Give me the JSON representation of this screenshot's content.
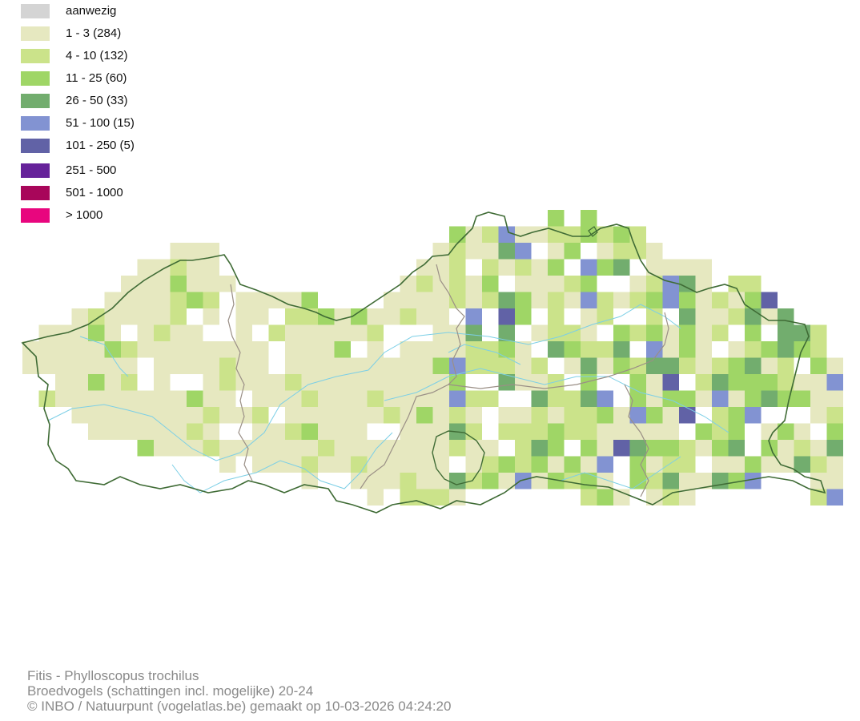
{
  "legend": [
    {
      "label": "aanwezig",
      "color": "#d4d4d4"
    },
    {
      "label": "1 - 3 (284)",
      "color": "#e6e8c0"
    },
    {
      "label": "4 - 10 (132)",
      "color": "#cbe38a"
    },
    {
      "label": "11 - 25 (60)",
      "color": "#9fd666"
    },
    {
      "label": "26 - 50 (33)",
      "color": "#72ad6e"
    },
    {
      "label": "51 - 100 (15)",
      "color": "#8293d2"
    },
    {
      "label": "101 - 250 (5)",
      "color": "#6162a6"
    },
    {
      "label": "251 - 500",
      "color": "#66229a"
    },
    {
      "label": "501 - 1000",
      "color": "#a8065a"
    },
    {
      "label": "> 1000",
      "color": "#e8067e"
    }
  ],
  "map": {
    "border_color": "#3f6b35",
    "province_border_color": "#9a8f86",
    "river_color": "#7ccfe6"
  },
  "footer": {
    "species": "Fitis - Phylloscopus trochilus",
    "dataset": "Broedvogels (schattingen incl. mogelijke) 20-24",
    "credit": "© INBO / Natuurpunt (vogelatlas.be) gemaakt op 10-03-2026 04:24:20"
  }
}
